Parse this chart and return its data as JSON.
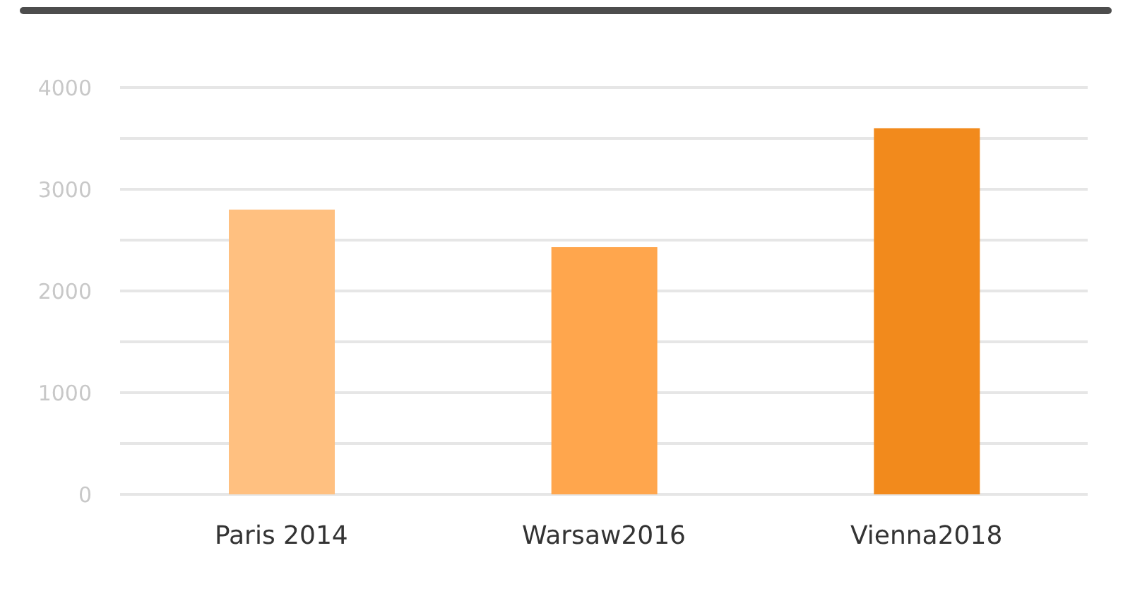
{
  "chart_data": {
    "type": "bar",
    "categories": [
      "Paris 2014",
      "Warsaw2016",
      "Vienna2018"
    ],
    "values": [
      2800,
      2430,
      3600
    ],
    "colors": [
      "#ffc080",
      "#ffa64d",
      "#f28a1c"
    ],
    "ylim": [
      0,
      4000
    ],
    "yticks": [
      0,
      {
        "value": 500,
        "label": null
      },
      1000,
      {
        "value": 1500,
        "label": null
      },
      2000,
      {
        "value": 2500,
        "label": null
      },
      3000,
      {
        "value": 3500,
        "label": null
      },
      4000
    ],
    "grid": "y",
    "legend": false
  }
}
